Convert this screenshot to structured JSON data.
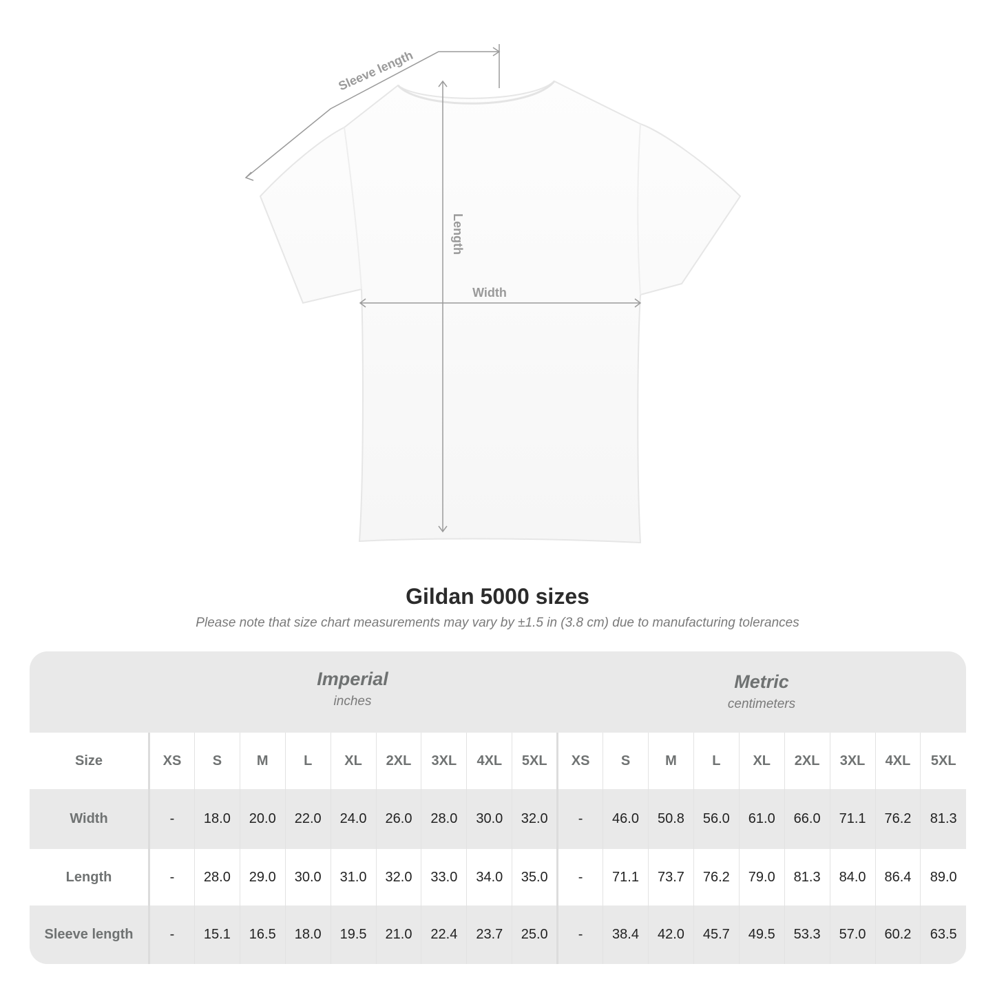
{
  "diagram": {
    "labels": {
      "sleeve": "Sleeve length",
      "length": "Length",
      "width": "Width"
    },
    "line_color": "#9a9a9a"
  },
  "title": "Gildan 5000 sizes",
  "subtitle": "Please note that size chart measurements may vary by ±1.5 in (3.8 cm) due to manufacturing tolerances",
  "table": {
    "imperial": {
      "name": "Imperial",
      "unit": "inches"
    },
    "metric": {
      "name": "Metric",
      "unit": "centimeters"
    },
    "size_label": "Size",
    "sizes": [
      "XS",
      "S",
      "M",
      "L",
      "XL",
      "2XL",
      "3XL",
      "4XL",
      "5XL"
    ],
    "rows": [
      {
        "label": "Width",
        "imperial": [
          "-",
          "18.0",
          "20.0",
          "22.0",
          "24.0",
          "26.0",
          "28.0",
          "30.0",
          "32.0"
        ],
        "metric": [
          "-",
          "46.0",
          "50.8",
          "56.0",
          "61.0",
          "66.0",
          "71.1",
          "76.2",
          "81.3"
        ]
      },
      {
        "label": "Length",
        "imperial": [
          "-",
          "28.0",
          "29.0",
          "30.0",
          "31.0",
          "32.0",
          "33.0",
          "34.0",
          "35.0"
        ],
        "metric": [
          "-",
          "71.1",
          "73.7",
          "76.2",
          "79.0",
          "81.3",
          "84.0",
          "86.4",
          "89.0"
        ]
      },
      {
        "label": "Sleeve length",
        "imperial": [
          "-",
          "15.1",
          "16.5",
          "18.0",
          "19.5",
          "21.0",
          "22.4",
          "23.7",
          "25.0"
        ],
        "metric": [
          "-",
          "38.4",
          "42.0",
          "45.7",
          "49.5",
          "53.3",
          "57.0",
          "60.2",
          "63.5"
        ]
      }
    ],
    "colors": {
      "header_bg": "#e9e9e9",
      "label_text": "#6f7272"
    }
  }
}
